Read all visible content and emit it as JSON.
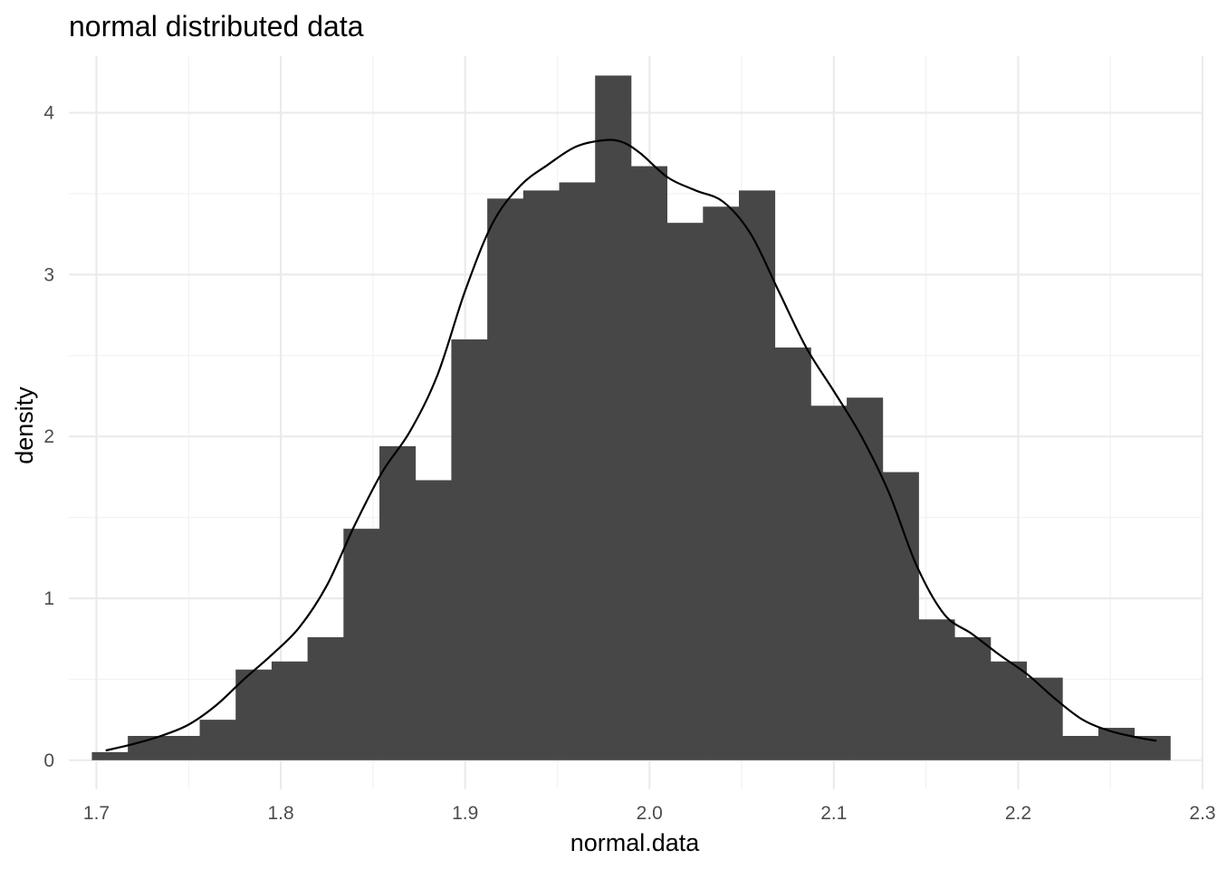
{
  "chart_data": {
    "type": "histogram",
    "title": "normal distributed data",
    "xlabel": "normal.data",
    "ylabel": "density",
    "xlim": [
      1.685,
      2.3
    ],
    "ylim": [
      -0.18,
      4.35
    ],
    "x_ticks": [
      "1.7",
      "1.8",
      "1.9",
      "2.0",
      "2.1",
      "2.2",
      "2.3"
    ],
    "y_ticks": [
      "0",
      "1",
      "2",
      "3",
      "4"
    ],
    "grid": true,
    "bin_width": 0.0195,
    "bins": [
      {
        "x0": 1.6975,
        "x1": 1.717,
        "density": 0.05
      },
      {
        "x0": 1.717,
        "x1": 1.7365,
        "density": 0.15
      },
      {
        "x0": 1.7365,
        "x1": 1.756,
        "density": 0.15
      },
      {
        "x0": 1.756,
        "x1": 1.7755,
        "density": 0.25
      },
      {
        "x0": 1.7755,
        "x1": 1.795,
        "density": 0.56
      },
      {
        "x0": 1.795,
        "x1": 1.8145,
        "density": 0.61
      },
      {
        "x0": 1.8145,
        "x1": 1.834,
        "density": 0.76
      },
      {
        "x0": 1.834,
        "x1": 1.8535,
        "density": 1.43
      },
      {
        "x0": 1.8535,
        "x1": 1.873,
        "density": 1.94
      },
      {
        "x0": 1.873,
        "x1": 1.8925,
        "density": 1.73
      },
      {
        "x0": 1.8925,
        "x1": 1.912,
        "density": 2.6
      },
      {
        "x0": 1.912,
        "x1": 1.9315,
        "density": 3.47
      },
      {
        "x0": 1.9315,
        "x1": 1.951,
        "density": 3.52
      },
      {
        "x0": 1.951,
        "x1": 1.9705,
        "density": 3.57
      },
      {
        "x0": 1.9705,
        "x1": 1.99,
        "density": 4.23
      },
      {
        "x0": 1.99,
        "x1": 2.0095,
        "density": 3.67
      },
      {
        "x0": 2.0095,
        "x1": 2.029,
        "density": 3.32
      },
      {
        "x0": 2.029,
        "x1": 2.0485,
        "density": 3.42
      },
      {
        "x0": 2.0485,
        "x1": 2.068,
        "density": 3.52
      },
      {
        "x0": 2.068,
        "x1": 2.0875,
        "density": 2.55
      },
      {
        "x0": 2.0875,
        "x1": 2.107,
        "density": 2.19
      },
      {
        "x0": 2.107,
        "x1": 2.1265,
        "density": 2.24
      },
      {
        "x0": 2.1265,
        "x1": 2.146,
        "density": 1.78
      },
      {
        "x0": 2.146,
        "x1": 2.1655,
        "density": 0.87
      },
      {
        "x0": 2.1655,
        "x1": 2.185,
        "density": 0.76
      },
      {
        "x0": 2.185,
        "x1": 2.2045,
        "density": 0.61
      },
      {
        "x0": 2.2045,
        "x1": 2.224,
        "density": 0.51
      },
      {
        "x0": 2.224,
        "x1": 2.2435,
        "density": 0.15
      },
      {
        "x0": 2.2435,
        "x1": 2.263,
        "density": 0.2
      },
      {
        "x0": 2.263,
        "x1": 2.2825,
        "density": 0.15
      }
    ],
    "density_curve": {
      "x": [
        1.705,
        1.72,
        1.735,
        1.75,
        1.765,
        1.78,
        1.795,
        1.81,
        1.825,
        1.84,
        1.855,
        1.87,
        1.885,
        1.9,
        1.915,
        1.93,
        1.945,
        1.96,
        1.975,
        1.985,
        1.995,
        2.01,
        2.025,
        2.04,
        2.055,
        2.07,
        2.085,
        2.1,
        2.115,
        2.13,
        2.145,
        2.16,
        2.175,
        2.19,
        2.205,
        2.22,
        2.235,
        2.25,
        2.265,
        2.275
      ],
      "y": [
        0.06,
        0.1,
        0.15,
        0.22,
        0.34,
        0.5,
        0.65,
        0.82,
        1.08,
        1.45,
        1.78,
        2.03,
        2.38,
        2.9,
        3.32,
        3.55,
        3.68,
        3.79,
        3.83,
        3.82,
        3.75,
        3.6,
        3.52,
        3.45,
        3.25,
        2.9,
        2.55,
        2.28,
        2.0,
        1.65,
        1.2,
        0.9,
        0.78,
        0.65,
        0.53,
        0.38,
        0.25,
        0.18,
        0.14,
        0.12
      ]
    },
    "colors": {
      "bar_fill": "#474747",
      "curve": "#000000",
      "grid_major": "#ebebeb",
      "grid_minor": "#f2f2f2",
      "tick_text": "#4d4d4d"
    }
  }
}
